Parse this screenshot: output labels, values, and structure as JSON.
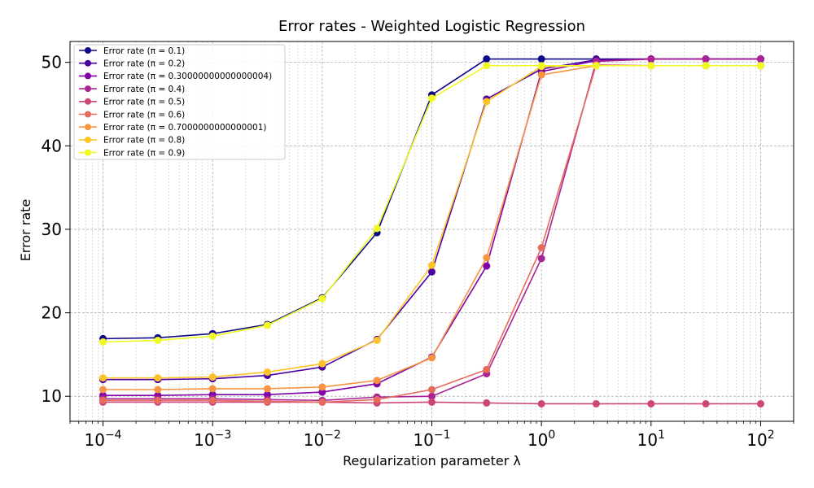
{
  "chart_data": {
    "type": "line",
    "title": "Error rates - Weighted Logistic Regression",
    "xlabel": "Regularization parameter λ",
    "ylabel": "Error rate",
    "x_scale": "log",
    "xlim": [
      5e-05,
      200
    ],
    "ylim": [
      7,
      52.5
    ],
    "x_ticks": [
      {
        "base": "10",
        "exp": "−4",
        "value": 0.0001
      },
      {
        "base": "10",
        "exp": "−3",
        "value": 0.001
      },
      {
        "base": "10",
        "exp": "−2",
        "value": 0.01
      },
      {
        "base": "10",
        "exp": "−1",
        "value": 0.1
      },
      {
        "base": "10",
        "exp": "0",
        "value": 1
      },
      {
        "base": "10",
        "exp": "1",
        "value": 10
      },
      {
        "base": "10",
        "exp": "2",
        "value": 100
      }
    ],
    "y_ticks": [
      10,
      20,
      30,
      40,
      50
    ],
    "grid": true,
    "legend_position": "top-left",
    "x": [
      0.0001,
      0.000316,
      0.001,
      0.00316,
      0.01,
      0.0316,
      0.1,
      0.316,
      1,
      3.16,
      10,
      31.6,
      100
    ],
    "series": [
      {
        "name": "Error rate (π = 0.1)",
        "color": "#0d0887",
        "values": [
          16.9,
          17.0,
          17.5,
          18.6,
          21.8,
          29.6,
          46.1,
          50.4,
          50.4,
          50.4,
          50.4,
          50.4,
          50.4
        ]
      },
      {
        "name": "Error rate (π = 0.2)",
        "color": "#4c02a1",
        "values": [
          12.0,
          12.0,
          12.1,
          12.5,
          13.5,
          16.8,
          24.9,
          45.6,
          49.2,
          50.3,
          50.4,
          50.4,
          50.4
        ]
      },
      {
        "name": "Error rate (π = 0.30000000000000004)",
        "color": "#7e03a8",
        "values": [
          10.1,
          10.1,
          10.2,
          10.2,
          10.5,
          11.5,
          14.7,
          25.6,
          48.9,
          50.2,
          50.4,
          50.4,
          50.4
        ]
      },
      {
        "name": "Error rate (π = 0.4)",
        "color": "#a92395",
        "values": [
          9.7,
          9.7,
          9.7,
          9.6,
          9.5,
          9.9,
          10.0,
          12.7,
          26.5,
          50.1,
          50.4,
          50.4,
          50.4
        ]
      },
      {
        "name": "Error rate (π = 0.5)",
        "color": "#cc4778",
        "values": [
          9.3,
          9.3,
          9.3,
          9.3,
          9.3,
          9.2,
          9.3,
          9.2,
          9.1,
          9.1,
          9.1,
          9.1,
          9.1
        ]
      },
      {
        "name": "Error rate (π = 0.6)",
        "color": "#e56b5d",
        "values": [
          9.5,
          9.5,
          9.5,
          9.4,
          9.3,
          9.6,
          10.8,
          13.2,
          27.8,
          49.7,
          49.6,
          49.6,
          49.6
        ]
      },
      {
        "name": "Error rate (π = 0.7000000000000001)",
        "color": "#f89441",
        "values": [
          10.8,
          10.8,
          10.9,
          10.9,
          11.1,
          11.9,
          14.6,
          26.6,
          48.5,
          49.6,
          49.6,
          49.6,
          49.6
        ]
      },
      {
        "name": "Error rate (π = 0.8)",
        "color": "#fdc328",
        "values": [
          12.2,
          12.2,
          12.3,
          12.9,
          13.9,
          16.7,
          25.7,
          45.3,
          49.5,
          49.6,
          49.6,
          49.6,
          49.6
        ]
      },
      {
        "name": "Error rate (π = 0.9)",
        "color": "#f0f921",
        "values": [
          16.5,
          16.7,
          17.2,
          18.5,
          21.7,
          30.1,
          45.7,
          49.6,
          49.6,
          49.6,
          49.6,
          49.6,
          49.6
        ]
      }
    ]
  }
}
